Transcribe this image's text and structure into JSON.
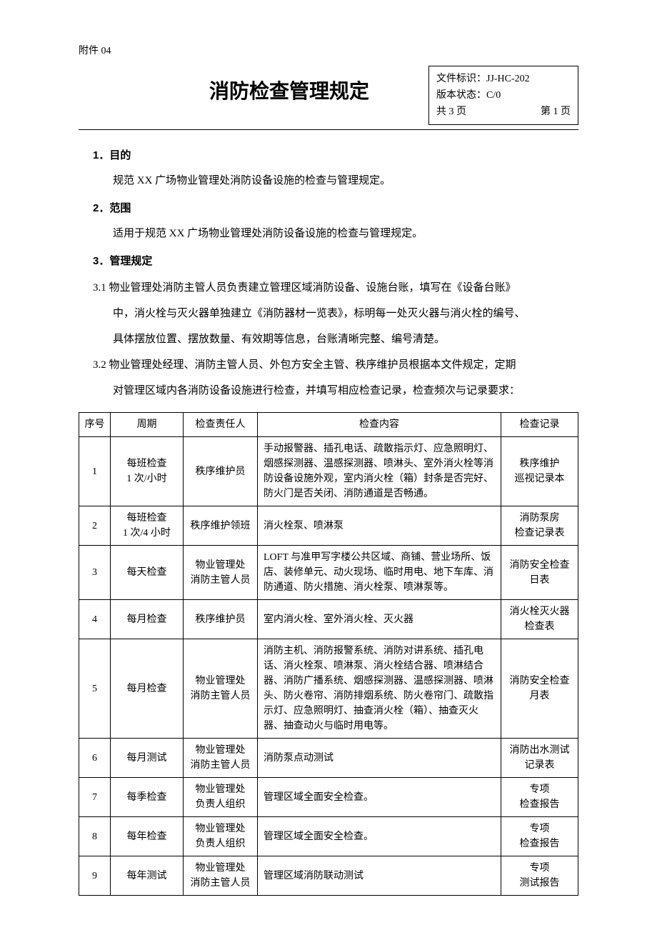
{
  "attachment": "附件 04",
  "title": "消防检查管理规定",
  "meta": {
    "doc_id_label": "文件标识：",
    "doc_id": "JJ-HC-202",
    "version_label": "版本状态：",
    "version": "C/0",
    "pages_total": "共 3 页",
    "page_cur": "第 1 页"
  },
  "s1": {
    "head": "1．目的",
    "body": "规范 XX 广场物业管理处消防设备设施的检查与管理规定。"
  },
  "s2": {
    "head": "2．范围",
    "body": "适用于规范 XX 广场物业管理处消防设备设施的检查与管理规定。"
  },
  "s3": {
    "head": "3．管理规定",
    "p31a": "3.1 物业管理处消防主管人员负责建立管理区域消防设备、设施台账，填写在《设备台账》",
    "p31b": "中，消火栓与灭火器单独建立《消防器材一览表》，标明每一处灭火器与消火栓的编号、",
    "p31c": "具体摆放位置、摆放数量、有效期等信息，台账清晰完整、编号清楚。",
    "p32a": "3.2 物业管理处经理、消防主管人员、外包方安全主管、秩序维护员根据本文件规定，定期",
    "p32b": "对管理区域内各消防设备设施进行检查，并填写相应检查记录，检查频次与记录要求："
  },
  "table": {
    "headers": {
      "c1": "序号",
      "c2": "周期",
      "c3": "检查责任人",
      "c4": "检查内容",
      "c5": "检查记录"
    },
    "rows": [
      {
        "n": "1",
        "period": "每班检查\n1 次/小时",
        "who": "秩序维护员",
        "content": "手动报警器、插孔电话、疏散指示灯、应急照明灯、烟感探测器、温感探测器、喷淋头、室外消火栓等消防设备设施外观，室内消火栓（箱）封条是否完好、防火门是否关闭、消防通道是否畅通。",
        "record": "秩序维护\n巡视记录本"
      },
      {
        "n": "2",
        "period": "每班检查\n1 次/4 小时",
        "who": "秩序维护领班",
        "content": "消火栓泵、喷淋泵",
        "record": "消防泵房\n检查记录表"
      },
      {
        "n": "3",
        "period": "每天检查",
        "who": "物业管理处\n消防主管人员",
        "content": "LOFT 与准甲写字楼公共区域、商铺、营业场所、饭店、装修单元、动火现场、临时用电、地下车库、消防通道、防火措施、消火栓泵、喷淋泵等。",
        "record": "消防安全检查\n日表"
      },
      {
        "n": "4",
        "period": "每月检查",
        "who": "秩序维护员",
        "content": "室内消火栓、室外消火栓、灭火器",
        "record": "消火栓灭火器\n检查表"
      },
      {
        "n": "5",
        "period": "每月检查",
        "who": "物业管理处\n消防主管人员",
        "content": "消防主机、消防报警系统、消防对讲系统、插孔电话、消火栓泵、喷淋泵、消火栓结合器、喷淋结合器、消防广播系统、烟感探测器、温感探测器、喷淋头、防火卷帘、消防排烟系统、防火卷帘门、疏散指示灯、应急照明灯、抽查消火栓（箱）、抽查灭火器、抽查动火与临时用电等。",
        "record": "消防安全检查\n月表"
      },
      {
        "n": "6",
        "period": "每月测试",
        "who": "物业管理处\n消防主管人员",
        "content": "消防泵点动测试",
        "record": "消防出水测试\n记录表"
      },
      {
        "n": "7",
        "period": "每季检查",
        "who": "物业管理处\n负责人组织",
        "content": "管理区域全面安全检查。",
        "record": "专项\n检查报告"
      },
      {
        "n": "8",
        "period": "每年检查",
        "who": "物业管理处\n负责人组织",
        "content": "管理区域全面安全检查。",
        "record": "专项\n检查报告"
      },
      {
        "n": "9",
        "period": "每年测试",
        "who": "物业管理处\n消防主管人员",
        "content": "管理区域消防联动测试",
        "record": "专项\n测试报告"
      }
    ]
  }
}
